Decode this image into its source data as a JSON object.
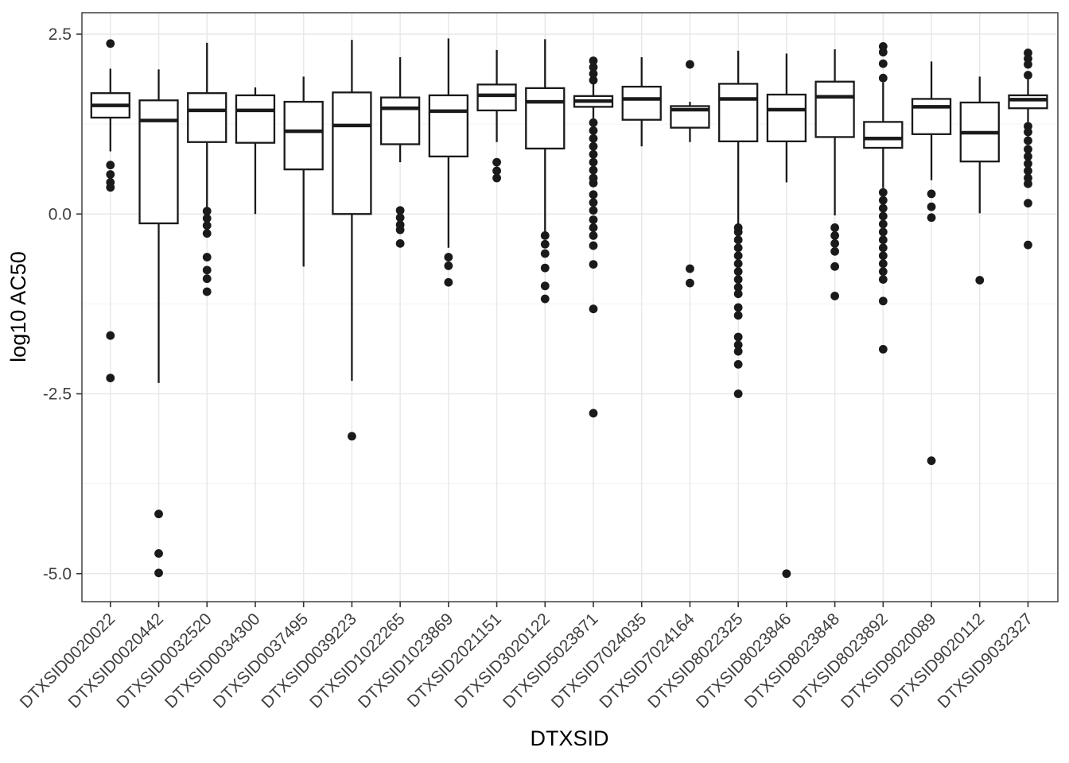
{
  "chart_data": {
    "type": "boxplot",
    "title": "",
    "xlabel": "DTXSID",
    "ylabel": "log10 AC50",
    "legend_position": "none",
    "grid": "on",
    "ylim": [
      -5.4,
      2.8
    ],
    "y_ticks": [
      {
        "label": "2.5",
        "value": 2.5
      },
      {
        "label": "0.0",
        "value": 0.0
      },
      {
        "label": "-2.5",
        "value": -2.5
      },
      {
        "label": "-5.0",
        "value": -5.0
      }
    ],
    "y_minor_gridlines": [
      1.25,
      -1.25,
      -3.75
    ],
    "categories": [
      "DTXSID0020022",
      "DTXSID0020442",
      "DTXSID0032520",
      "DTXSID0034300",
      "DTXSID0037495",
      "DTXSID0039223",
      "DTXSID1022265",
      "DTXSID1023869",
      "DTXSID2021151",
      "DTXSID3020122",
      "DTXSID5023871",
      "DTXSID7024035",
      "DTXSID7024164",
      "DTXSID8022325",
      "DTXSID8023846",
      "DTXSID8023848",
      "DTXSID8023892",
      "DTXSID9020089",
      "DTXSID9020112",
      "DTXSID9032327"
    ],
    "boxes": [
      {
        "whisker_low": 0.87,
        "q1": 1.34,
        "median": 1.51,
        "q3": 1.68,
        "whisker_high": 2.02,
        "outliers": [
          2.37,
          0.68,
          0.55,
          0.44,
          0.37,
          -1.69,
          -2.28
        ]
      },
      {
        "whisker_low": -2.35,
        "q1": -0.13,
        "median": 1.3,
        "q3": 1.58,
        "whisker_high": 2.01,
        "outliers": [
          -4.17,
          -4.72,
          -4.99
        ]
      },
      {
        "whisker_low": 0.08,
        "q1": 1.0,
        "median": 1.44,
        "q3": 1.68,
        "whisker_high": 2.38,
        "outliers": [
          0.04,
          -0.06,
          -0.16,
          -0.27,
          -0.6,
          -0.78,
          -0.9,
          -1.08
        ]
      },
      {
        "whisker_low": 0.0,
        "q1": 0.99,
        "median": 1.44,
        "q3": 1.65,
        "whisker_high": 1.76,
        "outliers": []
      },
      {
        "whisker_low": -0.73,
        "q1": 0.62,
        "median": 1.15,
        "q3": 1.56,
        "whisker_high": 1.91,
        "outliers": []
      },
      {
        "whisker_low": -2.32,
        "q1": 0.0,
        "median": 1.23,
        "q3": 1.69,
        "whisker_high": 2.42,
        "outliers": [
          -3.09
        ]
      },
      {
        "whisker_low": 0.72,
        "q1": 0.97,
        "median": 1.47,
        "q3": 1.62,
        "whisker_high": 2.18,
        "outliers": [
          0.05,
          -0.05,
          -0.15,
          -0.22,
          -0.41
        ]
      },
      {
        "whisker_low": -0.47,
        "q1": 0.8,
        "median": 1.43,
        "q3": 1.65,
        "whisker_high": 2.44,
        "outliers": [
          -0.6,
          -0.72,
          -0.95
        ]
      },
      {
        "whisker_low": 1.0,
        "q1": 1.44,
        "median": 1.65,
        "q3": 1.8,
        "whisker_high": 2.28,
        "outliers": [
          0.72,
          0.6,
          0.5
        ]
      },
      {
        "whisker_low": -0.25,
        "q1": 0.91,
        "median": 1.56,
        "q3": 1.75,
        "whisker_high": 2.43,
        "outliers": [
          -0.3,
          -0.42,
          -0.55,
          -0.75,
          -1.0,
          -1.18
        ]
      },
      {
        "whisker_low": 1.33,
        "q1": 1.49,
        "median": 1.57,
        "q3": 1.64,
        "whisker_high": 1.81,
        "outliers": [
          2.13,
          2.04,
          1.95,
          1.86,
          1.27,
          1.16,
          1.05,
          0.94,
          0.83,
          0.72,
          0.61,
          0.5,
          0.43,
          0.27,
          0.16,
          0.05,
          -0.08,
          -0.19,
          -0.3,
          -0.44,
          -0.7,
          -1.32,
          -2.77
        ]
      },
      {
        "whisker_low": 0.94,
        "q1": 1.31,
        "median": 1.6,
        "q3": 1.77,
        "whisker_high": 2.18,
        "outliers": []
      },
      {
        "whisker_low": 1.0,
        "q1": 1.2,
        "median": 1.45,
        "q3": 1.5,
        "whisker_high": 1.56,
        "outliers": [
          2.08,
          -0.76,
          -0.96
        ]
      },
      {
        "whisker_low": -0.17,
        "q1": 1.01,
        "median": 1.6,
        "q3": 1.81,
        "whisker_high": 2.27,
        "outliers": [
          -0.19,
          -0.25,
          -0.36,
          -0.47,
          -0.58,
          -0.69,
          -0.8,
          -0.91,
          -1.02,
          -1.11,
          -1.3,
          -1.41,
          -1.71,
          -1.82,
          -1.91,
          -2.09,
          -2.5
        ]
      },
      {
        "whisker_low": 0.44,
        "q1": 1.01,
        "median": 1.45,
        "q3": 1.66,
        "whisker_high": 2.23,
        "outliers": [
          -5.0
        ]
      },
      {
        "whisker_low": -0.02,
        "q1": 1.07,
        "median": 1.63,
        "q3": 1.84,
        "whisker_high": 2.29,
        "outliers": [
          -0.19,
          -0.3,
          -0.41,
          -0.52,
          -0.73,
          -1.14
        ]
      },
      {
        "whisker_low": 0.36,
        "q1": 0.92,
        "median": 1.05,
        "q3": 1.28,
        "whisker_high": 1.83,
        "outliers": [
          2.33,
          2.25,
          2.09,
          1.89,
          0.3,
          0.19,
          0.08,
          -0.03,
          -0.14,
          -0.25,
          -0.36,
          -0.47,
          -0.58,
          -0.69,
          -0.8,
          -0.91,
          -1.21,
          -1.88
        ]
      },
      {
        "whisker_low": 0.47,
        "q1": 1.11,
        "median": 1.49,
        "q3": 1.6,
        "whisker_high": 2.12,
        "outliers": [
          0.28,
          0.1,
          -0.05,
          -3.43
        ]
      },
      {
        "whisker_low": 0.01,
        "q1": 0.73,
        "median": 1.13,
        "q3": 1.55,
        "whisker_high": 1.91,
        "outliers": [
          -0.92
        ]
      },
      {
        "whisker_low": 1.28,
        "q1": 1.47,
        "median": 1.59,
        "q3": 1.65,
        "whisker_high": 1.87,
        "outliers": [
          2.24,
          2.16,
          2.08,
          1.93,
          1.22,
          1.14,
          1.02,
          0.9,
          0.8,
          0.7,
          0.6,
          0.5,
          0.42,
          0.15,
          -0.43
        ]
      }
    ]
  },
  "colors": {
    "background": "#ffffff",
    "panel_background": "#ffffff",
    "panel_border": "#333333",
    "grid_major": "#e8e8e8",
    "grid_minor": "#f2f2f2",
    "box_stroke": "#1a1a1a",
    "box_fill": "#ffffff",
    "outlier": "#1a1a1a",
    "tick_mark": "#333333",
    "tick_text": "#404040",
    "title_text": "#000000"
  }
}
